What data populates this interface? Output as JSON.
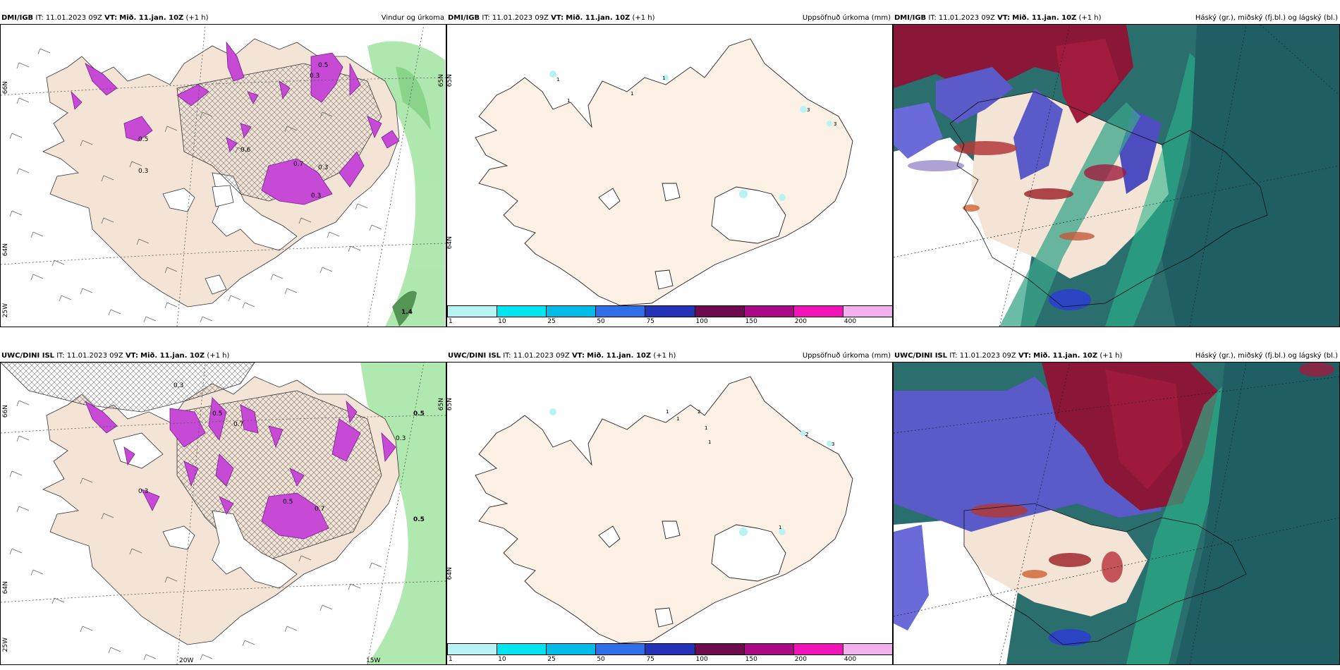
{
  "rows": [
    {
      "model": "DMI/IGB",
      "it_label": "IT:",
      "it_value": "11.01.2023 09Z",
      "vt_label": "VT:",
      "vt_value": "Mið. 11.jan. 10Z",
      "lead": "(+1 h)"
    },
    {
      "model": "UWC/DINI ISL",
      "it_label": "IT:",
      "it_value": "11.01.2023 09Z",
      "vt_label": "VT:",
      "vt_value": "Mið. 11.jan. 10Z",
      "lead": "(+1 h)"
    }
  ],
  "panels": {
    "wind": {
      "title": "Vindur og úrkoma",
      "lat_labels": [
        "66N",
        "64N",
        "65N"
      ],
      "lon_labels": [
        "20W",
        "15W",
        "25W"
      ],
      "precip_labels_top": [
        "0.5",
        "0.3",
        "0.6",
        "0.7",
        "0.3",
        "0.5",
        "0.3",
        "0.3",
        "1.4"
      ],
      "precip_labels_bottom": [
        "0.3",
        "0.5",
        "0.7",
        "0.3",
        "0.5",
        "0.7",
        "0.5",
        "0.3",
        "0.5"
      ]
    },
    "accum": {
      "title": "Uppsöfnuð úrkoma (mm)",
      "lat_labels": [
        "65N",
        "64N"
      ],
      "labels_top": [
        "1",
        "1",
        "1",
        "1",
        "3",
        "3",
        "1"
      ],
      "labels_bottom": [
        "1",
        "1",
        "2",
        "1",
        "1",
        "2",
        "3",
        "1"
      ]
    },
    "cloud": {
      "title": "Háský (gr.), miðský (fj.bl.) og lágský (bl.)"
    }
  },
  "colorbar": {
    "ticks": [
      "1",
      "10",
      "25",
      "50",
      "75",
      "100",
      "150",
      "200",
      "400"
    ],
    "colors": [
      "#b8f3f3",
      "#00e5ef",
      "#00bde8",
      "#2e6ee6",
      "#2233b8",
      "#6e0a4e",
      "#aa0a86",
      "#f014b8",
      "#f2b0ee"
    ]
  },
  "colors": {
    "land": "#f4e4d6",
    "precip": "#c74ad6",
    "wind_green": "#9be39b",
    "cloud_high": "#8a1638",
    "cloud_mid": "#5a5ac8",
    "cloud_low": "#1d6b6b"
  }
}
